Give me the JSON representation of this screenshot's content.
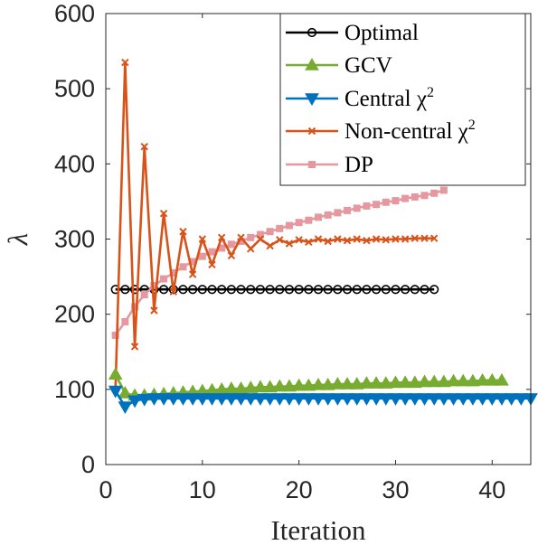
{
  "chart_data": {
    "type": "line",
    "xlabel": "Iteration",
    "ylabel": "λ",
    "xlim": [
      0,
      44
    ],
    "ylim": [
      0,
      600
    ],
    "xticks": [
      "0",
      "10",
      "20",
      "30",
      "40"
    ],
    "yticks": [
      "0",
      "100",
      "200",
      "300",
      "400",
      "500",
      "600"
    ],
    "grid": false,
    "legend_position": "top-right",
    "legend": [
      {
        "label": "Optimal",
        "superscript": ""
      },
      {
        "label": "GCV",
        "superscript": ""
      },
      {
        "label": "Central χ",
        "superscript": "2"
      },
      {
        "label": "Non-central χ",
        "superscript": "2"
      },
      {
        "label": "DP",
        "superscript": ""
      }
    ],
    "series": [
      {
        "name": "Optimal",
        "color": "#000000",
        "marker": "circle",
        "x": [
          1,
          2,
          3,
          4,
          5,
          6,
          7,
          8,
          9,
          10,
          11,
          12,
          13,
          14,
          15,
          16,
          17,
          18,
          19,
          20,
          21,
          22,
          23,
          24,
          25,
          26,
          27,
          28,
          29,
          30,
          31,
          32,
          33,
          34
        ],
        "values": [
          233,
          233,
          233,
          233,
          233,
          233,
          233,
          233,
          233,
          233,
          233,
          233,
          233,
          233,
          233,
          233,
          233,
          233,
          233,
          233,
          233,
          233,
          233,
          233,
          233,
          233,
          233,
          233,
          233,
          233,
          233,
          233,
          233,
          233
        ]
      },
      {
        "name": "GCV",
        "color": "#77AC30",
        "marker": "triangle-up",
        "x": [
          1,
          2,
          3,
          4,
          5,
          6,
          7,
          8,
          9,
          10,
          11,
          12,
          13,
          14,
          15,
          16,
          17,
          18,
          19,
          20,
          21,
          22,
          23,
          24,
          25,
          26,
          27,
          28,
          29,
          30,
          31,
          32,
          33,
          34,
          35,
          36,
          37,
          38,
          39,
          40,
          41
        ],
        "values": [
          120,
          95,
          92,
          92,
          93,
          94,
          95,
          96,
          97,
          98,
          99,
          100,
          101,
          101,
          102,
          103,
          103,
          104,
          104,
          105,
          105,
          106,
          106,
          107,
          107,
          107,
          108,
          108,
          108,
          109,
          109,
          109,
          110,
          110,
          110,
          111,
          111,
          111,
          112,
          112,
          112
        ]
      },
      {
        "name": "Central χ2",
        "color": "#0072BD",
        "marker": "triangle-down",
        "x": [
          1,
          2,
          3,
          4,
          5,
          6,
          7,
          8,
          9,
          10,
          11,
          12,
          13,
          14,
          15,
          16,
          17,
          18,
          19,
          20,
          21,
          22,
          23,
          24,
          25,
          26,
          27,
          28,
          29,
          30,
          31,
          32,
          33,
          34,
          35,
          36,
          37,
          38,
          39,
          40,
          41,
          42,
          43,
          44
        ],
        "values": [
          98,
          77,
          85,
          87,
          88,
          88,
          88,
          88,
          88,
          88,
          88,
          88,
          88,
          88,
          88,
          88,
          88,
          88,
          88,
          88,
          88,
          88,
          88,
          88,
          88,
          88,
          88,
          88,
          88,
          88,
          88,
          88,
          88,
          88,
          88,
          88,
          88,
          88,
          88,
          88,
          88,
          88,
          88,
          88
        ]
      },
      {
        "name": "Non-central χ2",
        "color": "#D95319",
        "marker": "x",
        "x": [
          1,
          2,
          3,
          4,
          5,
          6,
          7,
          8,
          9,
          10,
          11,
          12,
          13,
          14,
          15,
          16,
          17,
          18,
          19,
          20,
          21,
          22,
          23,
          24,
          25,
          26,
          27,
          28,
          29,
          30,
          31,
          32,
          33,
          34
        ],
        "values": [
          100,
          535,
          157,
          423,
          205,
          334,
          230,
          310,
          253,
          300,
          266,
          302,
          278,
          302,
          287,
          300,
          291,
          299,
          294,
          299,
          296,
          300,
          297,
          300,
          298,
          300,
          298,
          300,
          299,
          300,
          300,
          301,
          301,
          301
        ]
      },
      {
        "name": "DP",
        "color": "#E5989F",
        "marker": "square",
        "x": [
          1,
          2,
          3,
          4,
          5,
          6,
          7,
          8,
          9,
          10,
          11,
          12,
          13,
          14,
          15,
          16,
          17,
          18,
          19,
          20,
          21,
          22,
          23,
          24,
          25,
          26,
          27,
          28,
          29,
          30,
          31,
          32,
          33,
          34,
          35
        ],
        "values": [
          172,
          190,
          210,
          226,
          238,
          247,
          255,
          263,
          270,
          277,
          283,
          288,
          293,
          297,
          302,
          306,
          310,
          314,
          318,
          322,
          325,
          329,
          332,
          335,
          338,
          341,
          344,
          346,
          349,
          351,
          354,
          356,
          358,
          361,
          365
        ]
      }
    ]
  }
}
